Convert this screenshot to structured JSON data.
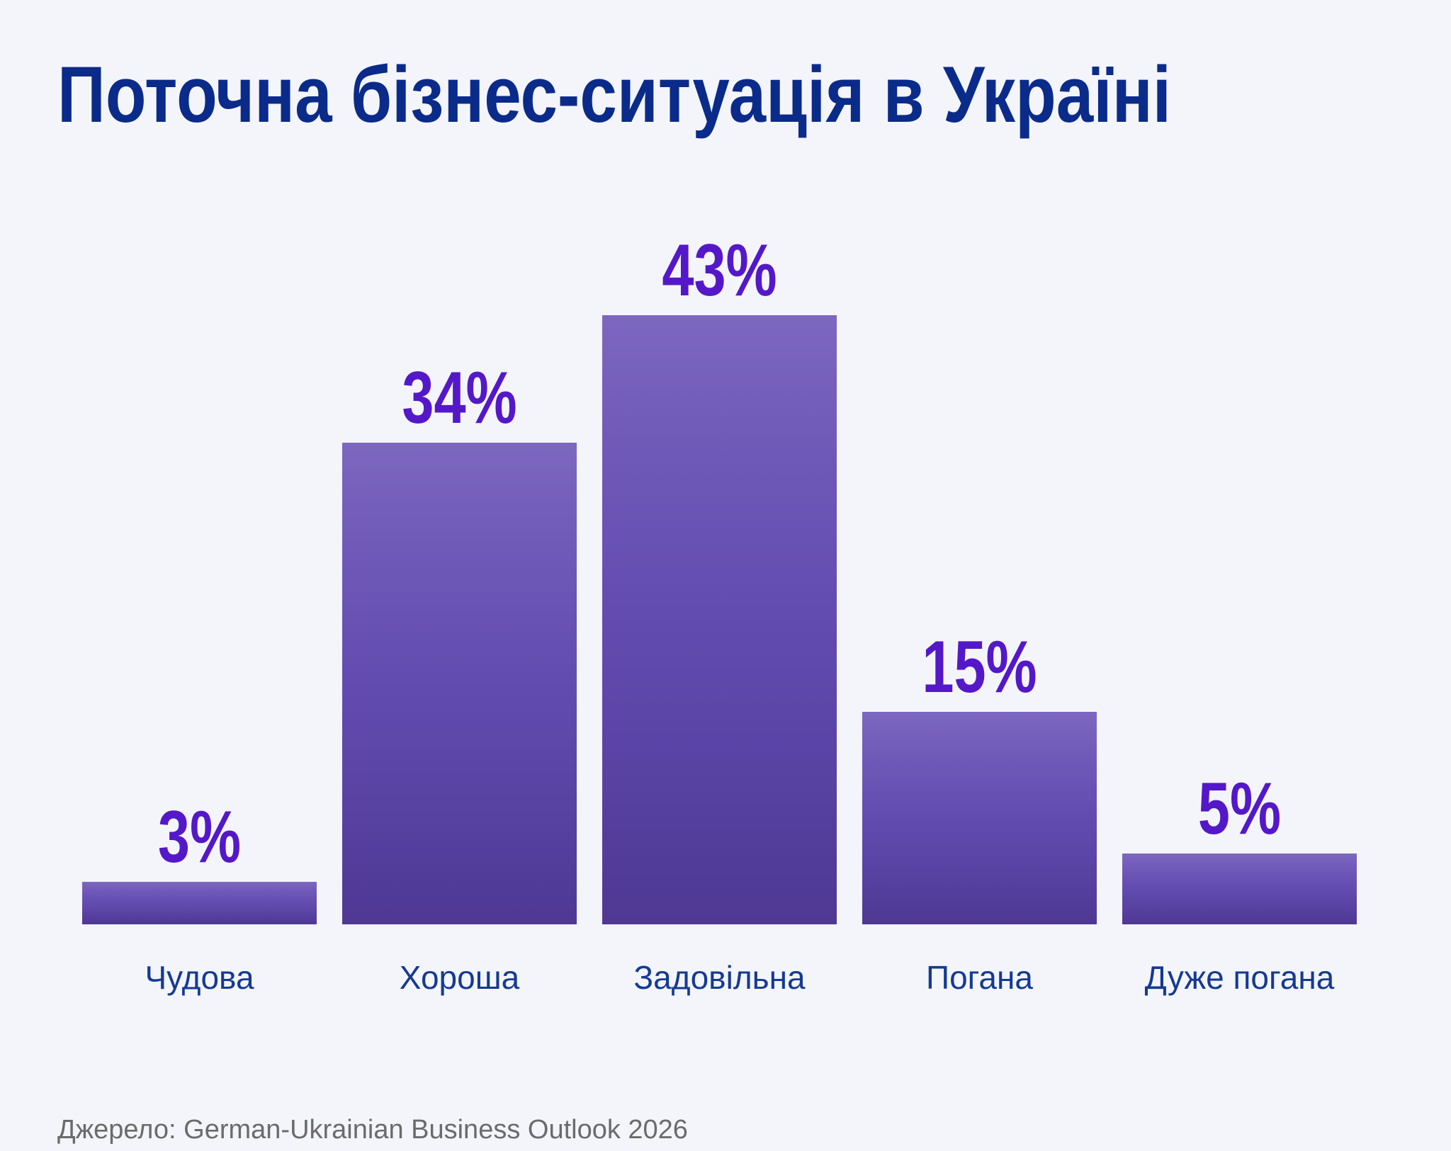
{
  "chart_data": {
    "type": "bar",
    "title": "Поточна бізнес-ситуація в Україні",
    "categories": [
      "Чудова",
      "Хороша",
      "Задовільна",
      "Погана",
      "Дуже погана"
    ],
    "values": [
      3,
      34,
      43,
      15,
      5
    ],
    "value_labels": [
      "3%",
      "34%",
      "43%",
      "15%",
      "5%"
    ],
    "color": "#6a52b8",
    "source": "Джерело: German-Ukrainian Business Outlook 2026"
  }
}
